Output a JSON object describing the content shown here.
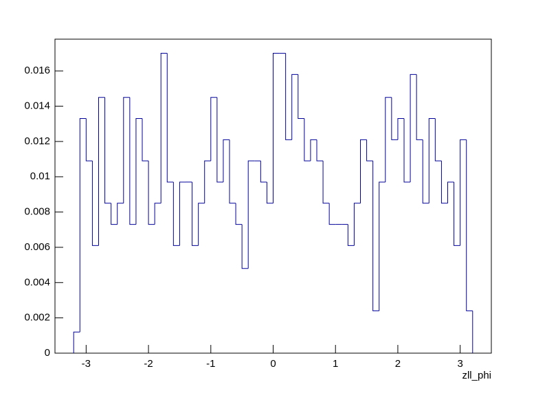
{
  "chart_data": {
    "type": "histogram",
    "xlabel": "zll_phi",
    "bins": [
      -3.2,
      -3.1,
      -3.0,
      -2.9,
      -2.8,
      -2.7,
      -2.6,
      -2.5,
      -2.4,
      -2.3,
      -2.2,
      -2.1,
      -2.0,
      -1.9,
      -1.8,
      -1.7,
      -1.6,
      -1.5,
      -1.4,
      -1.3,
      -1.2,
      -1.1,
      -1.0,
      -0.9,
      -0.8,
      -0.7,
      -0.6,
      -0.5,
      -0.4,
      -0.3,
      -0.2,
      -0.1,
      0.0,
      0.1,
      0.2,
      0.3,
      0.4,
      0.5,
      0.6,
      0.7,
      0.8,
      0.9,
      1.0,
      1.1,
      1.2,
      1.3,
      1.4,
      1.5,
      1.6,
      1.7,
      1.8,
      1.9,
      2.0,
      2.1,
      2.2,
      2.3,
      2.4,
      2.5,
      2.6,
      2.7,
      2.8,
      2.9,
      3.0,
      3.1,
      3.2
    ],
    "values": [
      0.0012,
      0.0133,
      0.0109,
      0.0061,
      0.0145,
      0.0085,
      0.0073,
      0.0085,
      0.0145,
      0.0073,
      0.0133,
      0.0109,
      0.0073,
      0.0085,
      0.017,
      0.0097,
      0.0061,
      0.0097,
      0.0097,
      0.0061,
      0.0085,
      0.0109,
      0.0145,
      0.0097,
      0.0121,
      0.0085,
      0.0073,
      0.0048,
      0.0109,
      0.0109,
      0.0097,
      0.0085,
      0.017,
      0.017,
      0.0121,
      0.0158,
      0.0133,
      0.0109,
      0.0121,
      0.0109,
      0.0085,
      0.0073,
      0.0073,
      0.0073,
      0.0061,
      0.0085,
      0.0121,
      0.0109,
      0.0024,
      0.0097,
      0.0145,
      0.0121,
      0.0133,
      0.0097,
      0.0158,
      0.0121,
      0.0085,
      0.0133,
      0.0109,
      0.0085,
      0.0097,
      0.0061,
      0.0121,
      0.0024
    ],
    "color": "#000099",
    "xlim": [
      -3.5,
      3.5
    ],
    "xticks": [
      -3,
      -2,
      -1,
      0,
      1,
      2,
      3
    ],
    "ylim": [
      0,
      0.0178
    ],
    "yticks": [
      0,
      0.002,
      0.004,
      0.006,
      0.008,
      0.01,
      0.012,
      0.014,
      0.016
    ]
  }
}
